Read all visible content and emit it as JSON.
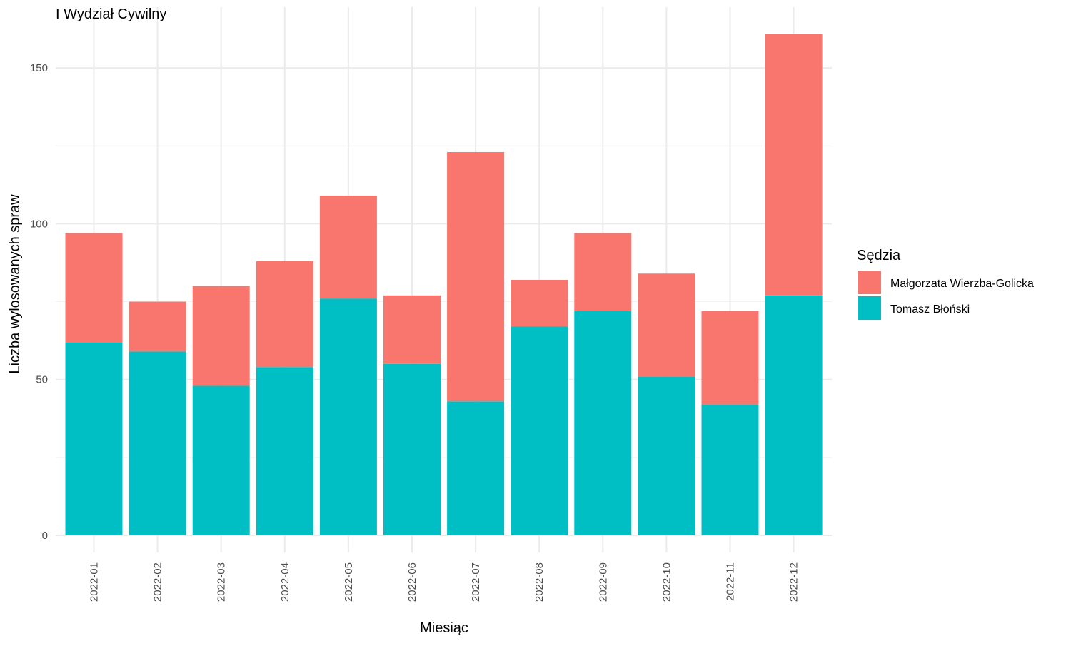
{
  "chart_data": {
    "type": "bar",
    "stacked": true,
    "title": "I Wydział Cywilny",
    "xlabel": "Miesiąc",
    "ylabel": "Liczba wylosowanych spraw",
    "ylim": [
      0,
      161
    ],
    "yticks": [
      0,
      50,
      100,
      150
    ],
    "grid": true,
    "legend": {
      "title": "Sędzia",
      "position": "right"
    },
    "categories": [
      "2022-01",
      "2022-02",
      "2022-03",
      "2022-04",
      "2022-05",
      "2022-06",
      "2022-07",
      "2022-08",
      "2022-09",
      "2022-10",
      "2022-11",
      "2022-12"
    ],
    "series": [
      {
        "name": "Tomasz Błoński",
        "color": "#00BFC4",
        "values": [
          62,
          59,
          48,
          54,
          76,
          55,
          43,
          67,
          72,
          51,
          42,
          77
        ]
      },
      {
        "name": "Małgorzata Wierzba-Golicka",
        "color": "#F8766D",
        "values": [
          35,
          16,
          32,
          34,
          33,
          22,
          80,
          15,
          25,
          33,
          30,
          84
        ]
      }
    ],
    "legend_order": [
      "Małgorzata Wierzba-Golicka",
      "Tomasz Błoński"
    ]
  }
}
